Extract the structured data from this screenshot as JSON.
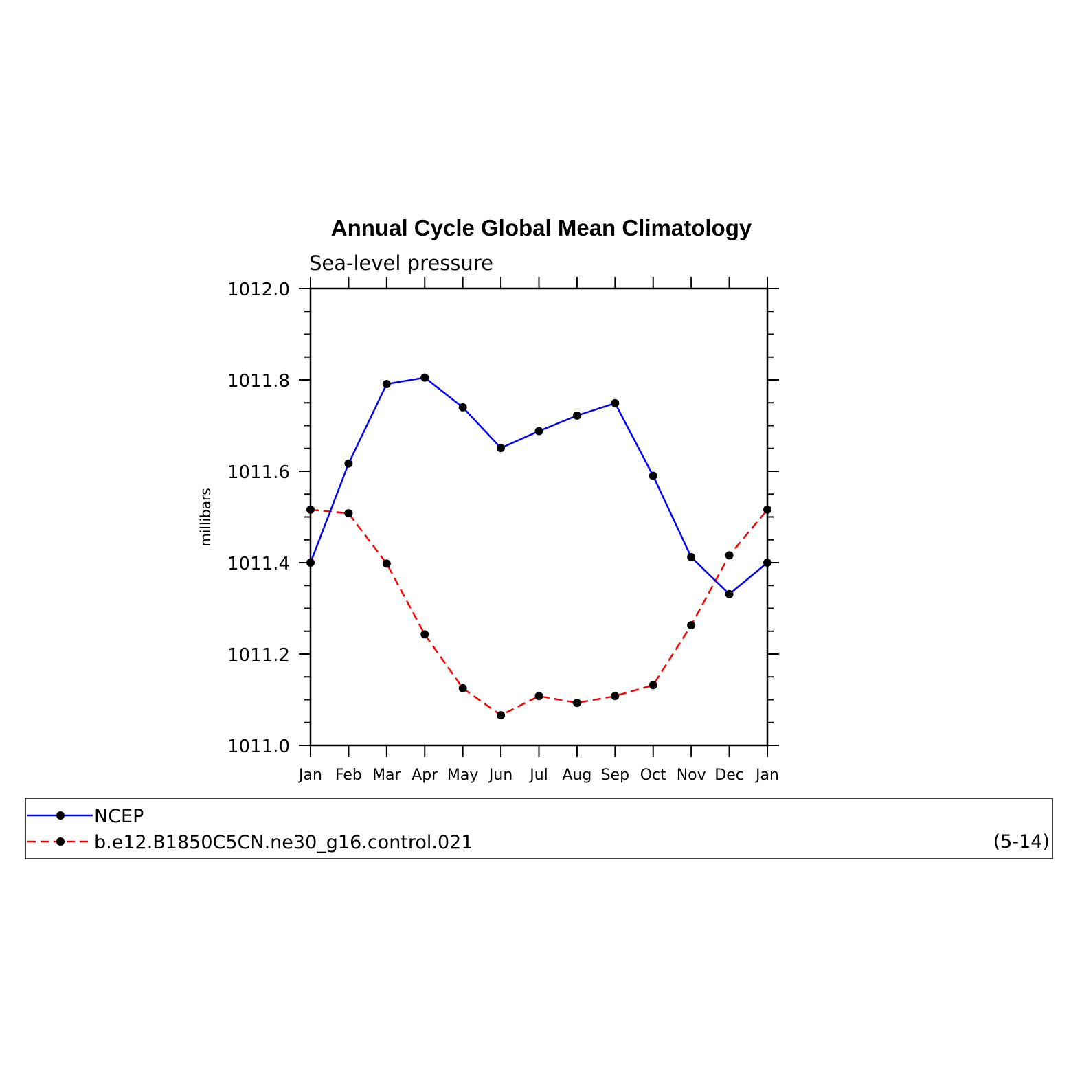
{
  "chart_data": {
    "type": "line",
    "title": "Annual Cycle Global Mean Climatology",
    "subtitle": "Sea-level pressure",
    "xlabel": "",
    "ylabel": "millibars",
    "categories": [
      "Jan",
      "Feb",
      "Mar",
      "Apr",
      "May",
      "Jun",
      "Jul",
      "Aug",
      "Sep",
      "Oct",
      "Nov",
      "Dec",
      "Jan"
    ],
    "ylim": [
      1011.0,
      1012.0
    ],
    "yticks": [
      "1011.0",
      "1011.2",
      "1011.4",
      "1011.6",
      "1011.8",
      "1012.0"
    ],
    "grid": false,
    "legend_position": "bottom",
    "legend_note": "(5-14)",
    "series": [
      {
        "name": "NCEP",
        "color": "#0000ff",
        "dash": "solid",
        "values": [
          1011.4,
          1011.617,
          1011.791,
          1011.805,
          1011.74,
          1011.651,
          1011.688,
          1011.722,
          1011.749,
          1011.59,
          1011.412,
          1011.331,
          1011.4
        ]
      },
      {
        "name": "b.e12.B1850C5CN.ne30_g16.control.021",
        "color": "#ff0000",
        "dash": "dashed",
        "values": [
          1011.516,
          1011.508,
          1011.398,
          1011.243,
          1011.125,
          1011.066,
          1011.108,
          1011.093,
          1011.108,
          1011.132,
          1011.263,
          1011.416,
          1011.516
        ]
      }
    ]
  }
}
